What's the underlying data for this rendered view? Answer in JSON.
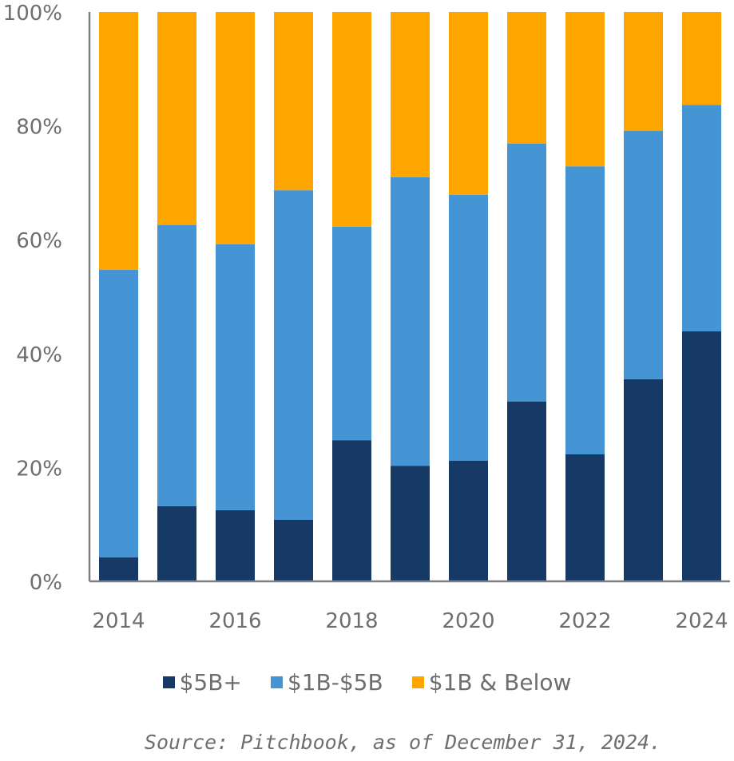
{
  "chart_data": {
    "type": "bar",
    "stacked": true,
    "title": "",
    "xlabel": "",
    "ylabel": "",
    "ylim": [
      0,
      100
    ],
    "y_ticks": [
      "0%",
      "20%",
      "40%",
      "60%",
      "80%",
      "100%"
    ],
    "y_tick_values": [
      0,
      20,
      40,
      60,
      80,
      100
    ],
    "categories": [
      "2014",
      "2015",
      "2016",
      "2017",
      "2018",
      "2019",
      "2020",
      "2021",
      "2022",
      "2023",
      "2024"
    ],
    "x_tick_labels": [
      "2014",
      "",
      "2016",
      "",
      "2018",
      "",
      "2020",
      "",
      "2022",
      "",
      "2024"
    ],
    "series": [
      {
        "name": "$5B+",
        "color": "#173966",
        "values": [
          4.2,
          13.2,
          12.5,
          10.8,
          24.8,
          20.3,
          21.2,
          31.6,
          22.3,
          35.5,
          43.9
        ]
      },
      {
        "name": "$1B-$5B",
        "color": "#4594d3",
        "values": [
          50.5,
          49.4,
          46.7,
          57.9,
          37.5,
          50.7,
          46.7,
          45.3,
          50.6,
          43.6,
          39.8
        ]
      },
      {
        "name": "$1B & Below",
        "color": "#ffa500",
        "values": [
          45.3,
          37.4,
          40.8,
          31.3,
          37.7,
          29.0,
          32.1,
          23.1,
          27.1,
          20.9,
          16.3
        ]
      }
    ],
    "legend_position": "bottom",
    "grid": false
  },
  "source": "Source: Pitchbook, as of December 31, 2024."
}
